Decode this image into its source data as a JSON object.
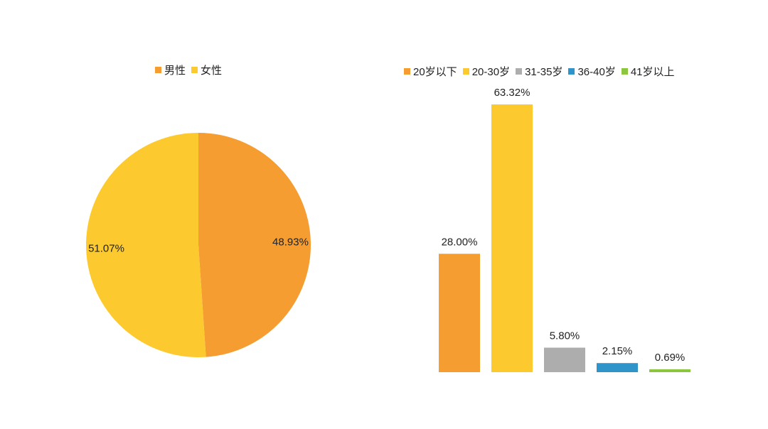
{
  "chart_data": [
    {
      "type": "pie",
      "legend_position": "top",
      "series": [
        {
          "name": "男性",
          "value": 48.93,
          "label": "48.93%",
          "color": "#F59D31"
        },
        {
          "name": "女性",
          "value": 51.07,
          "label": "51.07%",
          "color": "#FCCA2F"
        }
      ]
    },
    {
      "type": "bar",
      "legend_position": "top",
      "categories": [
        "20岁以下",
        "20-30岁",
        "31-35岁",
        "36-40岁",
        "41岁以上"
      ],
      "values": [
        28.0,
        63.32,
        5.8,
        2.15,
        0.69
      ],
      "labels": [
        "28.00%",
        "63.32%",
        "5.80%",
        "2.15%",
        "0.69%"
      ],
      "colors": [
        "#F59D31",
        "#FCCA2F",
        "#ADADAD",
        "#2E94C9",
        "#8CC63F"
      ],
      "ylim": [
        0,
        63.32
      ],
      "grid": false
    }
  ]
}
